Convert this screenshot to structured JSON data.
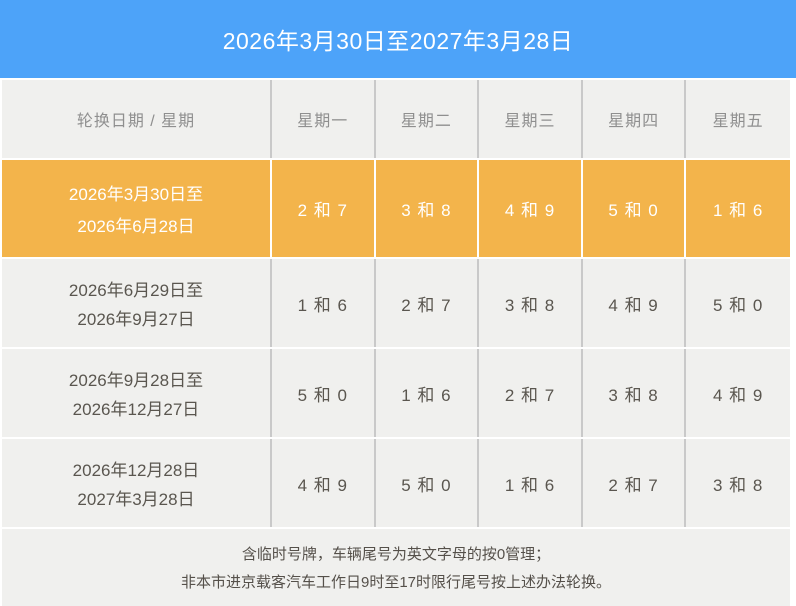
{
  "banner": {
    "title": "2026年3月30日至2027年3月28日"
  },
  "table": {
    "header": {
      "period_label": "轮换日期 / 星期",
      "days": [
        "星期一",
        "星期二",
        "星期三",
        "星期四",
        "星期五"
      ]
    },
    "rows": [
      {
        "period_line1": "2026年3月30日至",
        "period_line2": "2026年6月28日",
        "cells": [
          "2 和 7",
          "3 和 8",
          "4 和 9",
          "5 和 0",
          "1 和 6"
        ],
        "highlighted": true
      },
      {
        "period_line1": "2026年6月29日至",
        "period_line2": "2026年9月27日",
        "cells": [
          "1 和 6",
          "2 和 7",
          "3 和 8",
          "4 和 9",
          "5 和 0"
        ],
        "highlighted": false
      },
      {
        "period_line1": "2026年9月28日至",
        "period_line2": "2026年12月27日",
        "cells": [
          "5 和 0",
          "1 和 6",
          "2 和 7",
          "3 和 8",
          "4 和 9"
        ],
        "highlighted": false
      },
      {
        "period_line1": "2026年12月28日",
        "period_line2": "2027年3月28日",
        "cells": [
          "4 和 9",
          "5 和 0",
          "1 和 6",
          "2 和 7",
          "3 和 8"
        ],
        "highlighted": false
      }
    ]
  },
  "footnote": {
    "line1": "含临时号牌，车辆尾号为英文字母的按0管理；",
    "line2": "非本市进京载客汽车工作日9时至17时限行尾号按上述办法轮换。"
  },
  "colors": {
    "banner-bg": "#4da3f9",
    "highlight-bg": "#f3b44b",
    "cell-bg": "#f0f0ee",
    "divider": "#c9c9c9",
    "text-dark": "#5a564f",
    "text-muted": "#8f8f8f",
    "text-light": "#ffffff",
    "footnote-text": "#55504a"
  }
}
